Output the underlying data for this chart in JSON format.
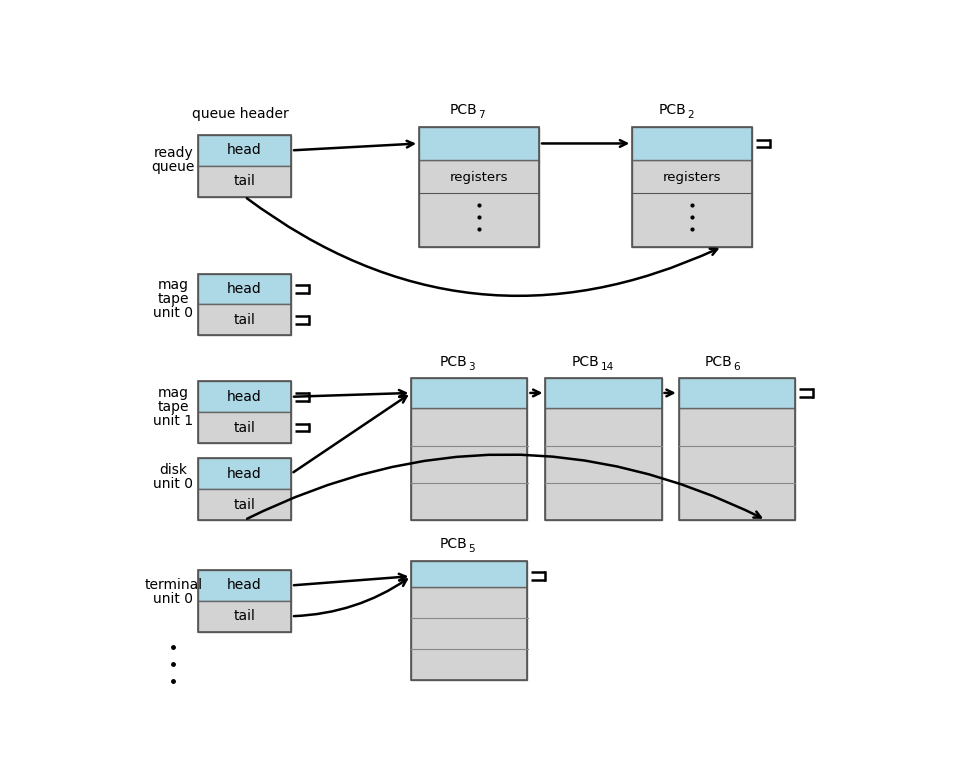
{
  "bg_color": "#ffffff",
  "box_blue": "#add8e6",
  "box_gray": "#d3d3d3",
  "border_color": "#666666",
  "text_color": "#000000",
  "queue_header_label": "queue header",
  "ready_queue_label": [
    "ready",
    "queue"
  ],
  "mag_tape_0_label": [
    "mag",
    "tape",
    "unit 0"
  ],
  "mag_tape_1_label": [
    "mag",
    "tape",
    "unit 1"
  ],
  "disk_0_label": [
    "disk",
    "unit 0"
  ],
  "terminal_0_label": [
    "terminal",
    "unit 0"
  ]
}
